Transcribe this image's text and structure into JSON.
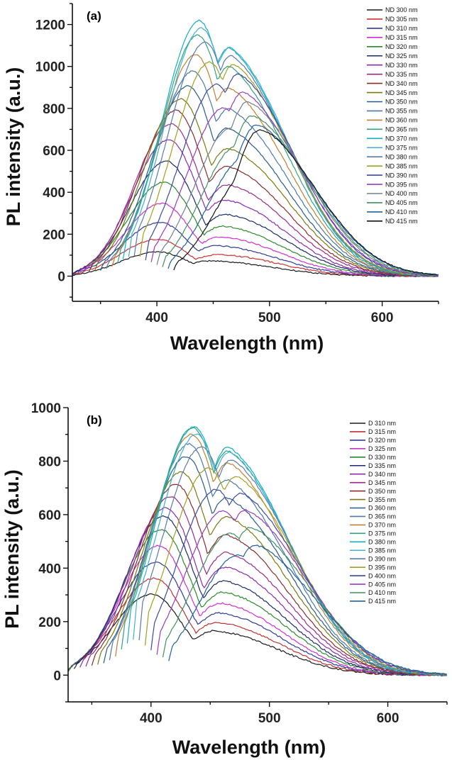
{
  "chart_data": [
    {
      "type": "line",
      "panel_label": "(a)",
      "xlabel": "Wavelength (nm)",
      "ylabel": "PL intensity (a.u.)",
      "xlim": [
        325,
        650
      ],
      "ylim": [
        -120,
        1300
      ],
      "xticks": [
        400,
        500,
        600
      ],
      "yticks": [
        0,
        200,
        400,
        600,
        800,
        1000,
        1200
      ],
      "legend_position": "top-right",
      "series": [
        {
          "name": "ND 300 nm",
          "color": "#1a1a1a",
          "onset": 325,
          "peak1": 400,
          "amp1": 115,
          "peak2": 450,
          "amp2": 70
        },
        {
          "name": "ND 305 nm",
          "color": "#d03030",
          "onset": 325,
          "peak1": 400,
          "amp1": 175,
          "peak2": 455,
          "amp2": 100
        },
        {
          "name": "ND 310 nm",
          "color": "#2e3a9a",
          "onset": 325,
          "peak1": 402,
          "amp1": 255,
          "peak2": 455,
          "amp2": 140
        },
        {
          "name": "ND 315 nm",
          "color": "#d030d0",
          "onset": 325,
          "peak1": 404,
          "amp1": 345,
          "peak2": 458,
          "amp2": 180
        },
        {
          "name": "ND 320 nm",
          "color": "#2a8a2a",
          "onset": 325,
          "peak1": 406,
          "amp1": 445,
          "peak2": 460,
          "amp2": 230
        },
        {
          "name": "ND 325 nm",
          "color": "#1a2a6a",
          "onset": 325,
          "peak1": 408,
          "amp1": 545,
          "peak2": 462,
          "amp2": 285
        },
        {
          "name": "ND 330 nm",
          "color": "#8a2ab0",
          "onset": 330,
          "peak1": 410,
          "amp1": 645,
          "peak2": 462,
          "amp2": 350
        },
        {
          "name": "ND 335 nm",
          "color": "#9a2a8a",
          "onset": 335,
          "peak1": 412,
          "amp1": 720,
          "peak2": 464,
          "amp2": 420
        },
        {
          "name": "ND 340 nm",
          "color": "#8a2a2a",
          "onset": 340,
          "peak1": 416,
          "amp1": 780,
          "peak2": 464,
          "amp2": 500
        },
        {
          "name": "ND 345 nm",
          "color": "#7a7a10",
          "onset": 345,
          "peak1": 420,
          "amp1": 830,
          "peak2": 465,
          "amp2": 580
        },
        {
          "name": "ND 350 nm",
          "color": "#2a5a8a",
          "onset": 350,
          "peak1": 426,
          "amp1": 880,
          "peak2": 465,
          "amp2": 660
        },
        {
          "name": "ND 355 nm",
          "color": "#4a7aaa",
          "onset": 355,
          "peak1": 430,
          "amp1": 940,
          "peak2": 466,
          "amp2": 740
        },
        {
          "name": "ND 360 nm",
          "color": "#c08030",
          "onset": 360,
          "peak1": 432,
          "amp1": 1010,
          "peak2": 466,
          "amp2": 830
        },
        {
          "name": "ND 365 nm",
          "color": "#30a080",
          "onset": 365,
          "peak1": 434,
          "amp1": 1090,
          "peak2": 466,
          "amp2": 920
        },
        {
          "name": "ND 370 nm",
          "color": "#10b0c0",
          "onset": 370,
          "peak1": 435,
          "amp1": 1150,
          "peak2": 466,
          "amp2": 1000
        },
        {
          "name": "ND 375 nm",
          "color": "#40b0d0",
          "onset": 375,
          "peak1": 437,
          "amp1": 1110,
          "peak2": 467,
          "amp2": 1000
        },
        {
          "name": "ND 380 nm",
          "color": "#5a7ab0",
          "onset": 380,
          "peak1": 440,
          "amp1": 1040,
          "peak2": 468,
          "amp2": 960
        },
        {
          "name": "ND 385 nm",
          "color": "#a0a020",
          "onset": 385,
          "peak1": 444,
          "amp1": 940,
          "peak2": 470,
          "amp2": 920
        },
        {
          "name": "ND 390 nm",
          "color": "#3a4aa0",
          "onset": 390,
          "peak1": 450,
          "amp1": 830,
          "peak2": 474,
          "amp2": 880
        },
        {
          "name": "ND 395 nm",
          "color": "#9a3ac0",
          "onset": 395,
          "peak1": 456,
          "amp1": 720,
          "peak2": 478,
          "amp2": 800
        },
        {
          "name": "ND 400 nm",
          "color": "#708090",
          "onset": 400,
          "peak1": 462,
          "amp1": 620,
          "peak2": 482,
          "amp2": 760
        },
        {
          "name": "ND 405 nm",
          "color": "#409060",
          "onset": 405,
          "peak1": 468,
          "amp1": 540,
          "peak2": 486,
          "amp2": 700
        },
        {
          "name": "ND 410 nm",
          "color": "#2060a0",
          "onset": 410,
          "peak1": 474,
          "amp1": 480,
          "peak2": 490,
          "amp2": 660
        },
        {
          "name": "ND 415 nm",
          "color": "#111111",
          "onset": 415,
          "peak1": 480,
          "amp1": 420,
          "peak2": 492,
          "amp2": 640
        }
      ]
    },
    {
      "type": "line",
      "panel_label": "(b)",
      "xlabel": "Wavelength (nm)",
      "ylabel": "PL intensity (a.u.)",
      "xlim": [
        330,
        650
      ],
      "ylim": [
        -100,
        1000
      ],
      "xticks": [
        400,
        500,
        600
      ],
      "yticks": [
        0,
        200,
        400,
        600,
        800,
        1000
      ],
      "legend_position": "top-right",
      "series": [
        {
          "name": "D 310 nm",
          "color": "#1a1a1a",
          "onset": 330,
          "peak1": 400,
          "amp1": 300,
          "peak2": 455,
          "amp2": 160
        },
        {
          "name": "D 315 nm",
          "color": "#c03030",
          "onset": 330,
          "peak1": 402,
          "amp1": 360,
          "peak2": 457,
          "amp2": 190
        },
        {
          "name": "D 320 nm",
          "color": "#2e3a9a",
          "onset": 330,
          "peak1": 404,
          "amp1": 420,
          "peak2": 459,
          "amp2": 225
        },
        {
          "name": "D 325 nm",
          "color": "#d030d0",
          "onset": 330,
          "peak1": 406,
          "amp1": 480,
          "peak2": 460,
          "amp2": 260
        },
        {
          "name": "D 330 nm",
          "color": "#2a8a2a",
          "onset": 330,
          "peak1": 408,
          "amp1": 540,
          "peak2": 462,
          "amp2": 300
        },
        {
          "name": "D 335 nm",
          "color": "#1a2a6a",
          "onset": 335,
          "peak1": 410,
          "amp1": 590,
          "peak2": 463,
          "amp2": 340
        },
        {
          "name": "D 340 nm",
          "color": "#8a2ab0",
          "onset": 340,
          "peak1": 412,
          "amp1": 620,
          "peak2": 464,
          "amp2": 390
        },
        {
          "name": "D 345 nm",
          "color": "#9a2a8a",
          "onset": 345,
          "peak1": 416,
          "amp1": 660,
          "peak2": 465,
          "amp2": 440
        },
        {
          "name": "D 350 nm",
          "color": "#8a2a2a",
          "onset": 350,
          "peak1": 420,
          "amp1": 700,
          "peak2": 465,
          "amp2": 500
        },
        {
          "name": "D 355 nm",
          "color": "#7a7a10",
          "onset": 355,
          "peak1": 424,
          "amp1": 740,
          "peak2": 466,
          "amp2": 560
        },
        {
          "name": "D 360 nm",
          "color": "#2a5a8a",
          "onset": 360,
          "peak1": 428,
          "amp1": 790,
          "peak2": 466,
          "amp2": 620
        },
        {
          "name": "D 365 nm",
          "color": "#4a7aaa",
          "onset": 365,
          "peak1": 430,
          "amp1": 830,
          "peak2": 466,
          "amp2": 680
        },
        {
          "name": "D 370 nm",
          "color": "#c08030",
          "onset": 370,
          "peak1": 432,
          "amp1": 860,
          "peak2": 467,
          "amp2": 740
        },
        {
          "name": "D 375 nm",
          "color": "#30a080",
          "onset": 375,
          "peak1": 433,
          "amp1": 880,
          "peak2": 467,
          "amp2": 780
        },
        {
          "name": "D 380 nm",
          "color": "#10b0c0",
          "onset": 380,
          "peak1": 434,
          "amp1": 880,
          "peak2": 467,
          "amp2": 790
        },
        {
          "name": "D 385 nm",
          "color": "#40b0d0",
          "onset": 385,
          "peak1": 436,
          "amp1": 850,
          "peak2": 468,
          "amp2": 770
        },
        {
          "name": "D 390 nm",
          "color": "#5a7ab0",
          "onset": 390,
          "peak1": 440,
          "amp1": 800,
          "peak2": 470,
          "amp2": 740
        },
        {
          "name": "D 395 nm",
          "color": "#a0a020",
          "onset": 395,
          "peak1": 446,
          "amp1": 720,
          "peak2": 474,
          "amp2": 680
        },
        {
          "name": "D 400 nm",
          "color": "#3a4aa0",
          "onset": 400,
          "peak1": 452,
          "amp1": 640,
          "peak2": 478,
          "amp2": 620
        },
        {
          "name": "D 405 nm",
          "color": "#9a3ac0",
          "onset": 405,
          "peak1": 458,
          "amp1": 560,
          "peak2": 482,
          "amp2": 560
        },
        {
          "name": "D 410 nm",
          "color": "#409060",
          "onset": 410,
          "peak1": 464,
          "amp1": 480,
          "peak2": 486,
          "amp2": 500
        },
        {
          "name": "D 415 nm",
          "color": "#2060a0",
          "onset": 415,
          "peak1": 470,
          "amp1": 400,
          "peak2": 490,
          "amp2": 440
        }
      ]
    }
  ]
}
